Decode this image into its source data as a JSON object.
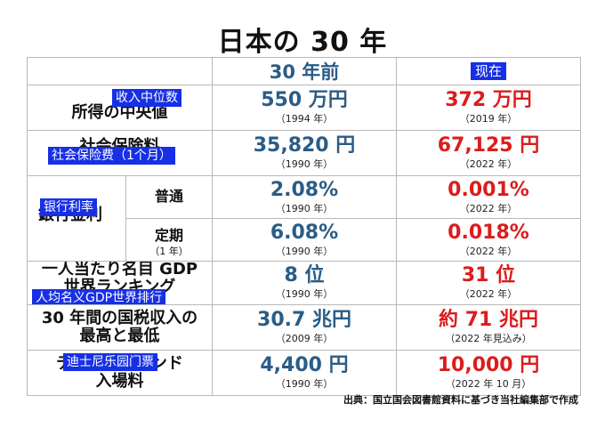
{
  "title": "日本の 30 年",
  "header": {
    "old": "30 年前",
    "new": "现在"
  },
  "rows": [
    {
      "label": "所得の中央値",
      "overlay": "收入中位数",
      "old_value": "550 万円",
      "old_year": "（1994 年）",
      "new_value": "372 万円",
      "new_year": "（2019 年）"
    },
    {
      "label": "社会保険料",
      "overlay": "社会保险费（1个月）",
      "old_value": "35,820 円",
      "old_year": "（1990 年）",
      "new_value": "67,125 円",
      "new_year": "（2022 年）"
    },
    {
      "label": "銀行金利",
      "overlay": "银行利率",
      "sub": "普通",
      "old_value": "2.08%",
      "old_year": "（1990 年）",
      "new_value": "0.001%",
      "new_year": "（2022 年）"
    },
    {
      "sub": "定期",
      "sub_note": "（1 年）",
      "old_value": "6.08%",
      "old_year": "（1990 年）",
      "new_value": "0.018%",
      "new_year": "（2022 年）"
    },
    {
      "label_line1": "一人当たり名目 GDP",
      "label_line2": "世界ランキング",
      "overlay": "人均名义GDP世界排行",
      "old_value": "8 位",
      "old_year": "（1990 年）",
      "new_value": "31 位",
      "new_year": "（2022 年）"
    },
    {
      "label_line1": "30 年間の国税収入の",
      "label_line2": "最高と最低",
      "old_value": "30.7 兆円",
      "old_year": "（2009 年）",
      "new_value": "約 71 兆円",
      "new_year": "（2022 年見込み）"
    },
    {
      "label_line1": "ディズニーランド",
      "label_line2": "入場料",
      "overlay": "迪士尼乐园门票",
      "old_value": "4,400 円",
      "old_year": "（1990 年）",
      "new_value": "10,000 円",
      "new_year": "（2022 年 10 月）"
    }
  ],
  "source": "出典：国立国会図書館資料に基づき当社編集部で作成",
  "colors": {
    "old": "#2a5c86",
    "new": "#dc1c1c",
    "overlay_bg": "#1730e6"
  }
}
